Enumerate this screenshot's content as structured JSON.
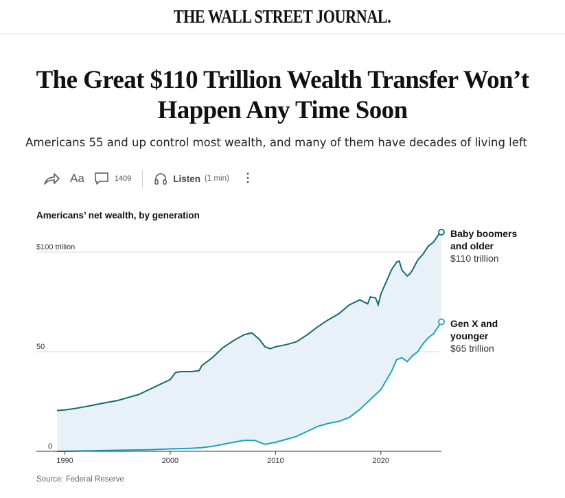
{
  "masthead": {
    "title": "THE WALL STREET JOURNAL."
  },
  "article": {
    "headline": "The Great $110 Trillion Wealth Transfer Won’t Happen Any Time Soon",
    "dek": "Americans 55 and up control most wealth, and many of them have decades of living left"
  },
  "toolbar": {
    "share_icon": "share-arrow-icon",
    "text_size_label": "Aa",
    "comment_icon": "comment-bubble-icon",
    "comment_count": "1409",
    "listen_icon": "headphones-icon",
    "listen_label": "Listen",
    "listen_duration": "(1 min)",
    "more_icon": "more-vertical-icon"
  },
  "chart": {
    "title": "Americans’ net wealth, by generation",
    "source": "Source: Federal Reserve",
    "boomer_label_line1": "Baby boomers",
    "boomer_label_line2": "and older",
    "boomer_value": "$110 trillion",
    "genx_label_line1": "Gen X and",
    "genx_label_line2": "younger",
    "genx_value": "$65 trillion"
  },
  "chart_data": {
    "type": "line",
    "title": "Americans’ net wealth, by generation",
    "xlabel": "",
    "ylabel": "",
    "xlim": [
      1989.25,
      2025.75
    ],
    "ylim": [
      0,
      110
    ],
    "x_ticks": [
      1990,
      2000,
      2010,
      2020
    ],
    "y_ticks": [
      {
        "value": 0,
        "label": "0"
      },
      {
        "value": 50,
        "label": "50"
      },
      {
        "value": 100,
        "label": "$100 trillion"
      }
    ],
    "grid": true,
    "shaded_between_series": true,
    "colors": {
      "boomers": "#14696b",
      "genx": "#15a5bc",
      "fill": "#e9f1f8",
      "grid": "#d8d8d8"
    },
    "series": [
      {
        "name": "Baby boomers and older",
        "end_label": "$110 trillion",
        "x": [
          1989.25,
          1990,
          1991,
          1992,
          1993,
          1994,
          1995,
          1996,
          1997,
          1998,
          1999,
          2000,
          2000.5,
          2001,
          2002,
          2002.75,
          2003,
          2004,
          2005,
          2006,
          2007,
          2007.75,
          2008.5,
          2009,
          2009.5,
          2010,
          2011,
          2012,
          2013,
          2014,
          2015,
          2016,
          2017,
          2018,
          2018.75,
          2019,
          2019.5,
          2019.75,
          2020,
          2020.5,
          2021,
          2021.5,
          2021.75,
          2022,
          2022.5,
          2022.75,
          2023,
          2023.5,
          2024,
          2024.5,
          2025,
          2025.5,
          2025.75
        ],
        "values": [
          20.5,
          20.8,
          21.5,
          22.5,
          23.5,
          24.5,
          25.5,
          27,
          28.5,
          31,
          33.5,
          36,
          39.5,
          40,
          40,
          40.5,
          43,
          47,
          52,
          55.5,
          58.5,
          59.5,
          56,
          52.5,
          51.5,
          52.5,
          53.5,
          55,
          58.5,
          62.5,
          66,
          69,
          73.5,
          76,
          74,
          77.5,
          77,
          73.5,
          79,
          85,
          91,
          95,
          95.5,
          91,
          88,
          89,
          91,
          96,
          99,
          103,
          105,
          109,
          110
        ]
      },
      {
        "name": "Gen X and younger",
        "end_label": "$65 trillion",
        "x": [
          1989.25,
          1990,
          1992,
          1994,
          1996,
          1998,
          2000,
          2002,
          2003,
          2004,
          2005,
          2006,
          2007,
          2008,
          2009,
          2010,
          2011,
          2012,
          2013,
          2014,
          2015,
          2016,
          2017,
          2018,
          2019,
          2020,
          2021,
          2021.5,
          2022,
          2022.5,
          2023,
          2023.5,
          2024,
          2024.5,
          2025,
          2025.5,
          2025.75
        ],
        "values": [
          0,
          0,
          0.2,
          0.4,
          0.6,
          0.8,
          1.2,
          1.5,
          1.8,
          2.5,
          3.5,
          4.5,
          5.5,
          5.5,
          3.5,
          4.5,
          6,
          7.5,
          10,
          12.5,
          14,
          15,
          17,
          21,
          26,
          31,
          40,
          46,
          47,
          45,
          48,
          50,
          54,
          57,
          59,
          63,
          65
        ]
      }
    ],
    "x_axis_labels": [
      "1990",
      "2000",
      "2010",
      "2020"
    ]
  }
}
